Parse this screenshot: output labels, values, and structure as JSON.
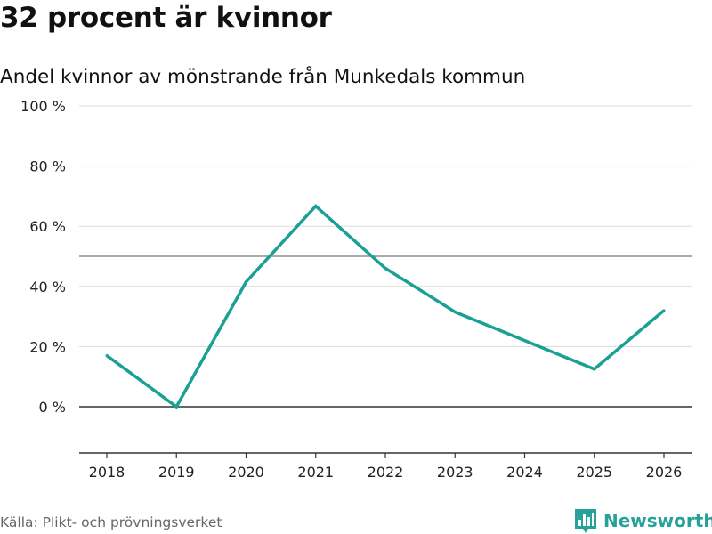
{
  "header": {
    "title": "32 procent är kvinnor",
    "subtitle": "Andel kvinnor av mönstrande från Munkedals kommun"
  },
  "footer": {
    "source": "Källa: Plikt- och prövningsverket",
    "brand": "Newsworthy",
    "brand_icon": "bar-chart-logo-icon"
  },
  "colors": {
    "line": "#1aa095",
    "grid": "#dcdcdc",
    "axis": "#333333",
    "reference": "#777777",
    "brand": "#27a29a"
  },
  "chart_data": {
    "type": "line",
    "title": "32 procent är kvinnor",
    "subtitle": "Andel kvinnor av mönstrande från Munkedals kommun",
    "xlabel": "",
    "ylabel": "",
    "x": [
      2018,
      2019,
      2020,
      2021,
      2022,
      2023,
      2024,
      2025,
      2026
    ],
    "x_tick_labels": [
      "2018",
      "2019",
      "2020",
      "2021",
      "2022",
      "2023",
      "2024",
      "2025",
      "2026"
    ],
    "series": [
      {
        "values": [
          17,
          0,
          41.5,
          66.7,
          46,
          31.5,
          22,
          12.5,
          32
        ]
      }
    ],
    "ylim": [
      -15,
      100
    ],
    "y_ticks": [
      0,
      20,
      40,
      60,
      80,
      100
    ],
    "y_tick_labels": [
      "0 %",
      "20 %",
      "40 %",
      "60 %",
      "80 %",
      "100 %"
    ],
    "reference_line": 50,
    "grid": true,
    "legend": "none"
  }
}
